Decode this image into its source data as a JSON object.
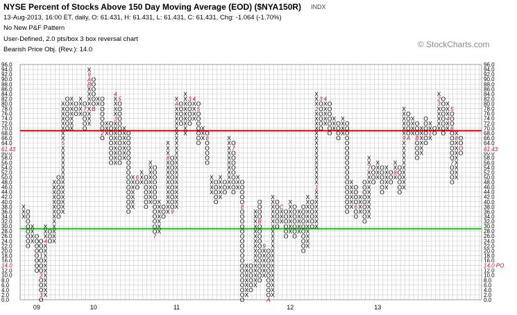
{
  "header": {
    "title": "NYSE Percent of Stocks Above 150 Day Moving Average (EOD) ($NYA150R)",
    "ticker_label": "INDX",
    "line1": "13-Aug-2013, 16:00 ET, daily, O: 61.431, H: 61.431, L: 61.431, C: 61.431, Chg: -1.064 (-1.70%)",
    "line2": "No New P&F Pattern",
    "line3": "User-Defined, 2.0 pts/box 3 box reversal chart",
    "line4": "Bearish Price Obj. (Rev.): 14.0",
    "watermark": "© StockCharts.com"
  },
  "colors": {
    "grid": "#c8c8c8",
    "x_mark": "#000000",
    "o_mark": "#000000",
    "month_mark": "#cc0033",
    "resistance_line": "#e00000",
    "support_line": "#00cc00",
    "axis_text": "#000000"
  },
  "chart_data": {
    "type": "point-and-figure",
    "box_size": 2.0,
    "reversal": 3,
    "ylim": [
      0,
      96
    ],
    "y_ticks": [
      0,
      2,
      4,
      6,
      8,
      10,
      12,
      14,
      16,
      18,
      20,
      22,
      24,
      26,
      28,
      30,
      32,
      34,
      36,
      38,
      40,
      42,
      44,
      46,
      48,
      50,
      52,
      54,
      56,
      58,
      60,
      62,
      64,
      66,
      68,
      70,
      72,
      74,
      76,
      78,
      80,
      82,
      84,
      86,
      88,
      90,
      92,
      94,
      96
    ],
    "x_year_labels": [
      {
        "label": "09",
        "col": 3
      },
      {
        "label": "10",
        "col": 16
      },
      {
        "label": "11",
        "col": 35
      },
      {
        "label": "12",
        "col": 61
      },
      {
        "label": "13",
        "col": 81
      }
    ],
    "reference_lines": [
      {
        "name": "resistance",
        "value": 69
      },
      {
        "name": "support",
        "value": 29
      }
    ],
    "price_labels": [
      {
        "text": "61.43",
        "value": 61.43
      },
      {
        "text": "14.0 PO",
        "value": 14
      }
    ],
    "columns": [
      {
        "t": "X",
        "lo": 34,
        "hi": 38
      },
      {
        "t": "O",
        "lo": 22,
        "hi": 36
      },
      {
        "t": "X",
        "lo": 24,
        "hi": 30
      },
      {
        "t": "O",
        "lo": 12,
        "hi": 26
      },
      {
        "t": "O",
        "lo": 0,
        "hi": 24,
        "marks": [
          {
            "v": 18,
            "m": "1"
          },
          {
            "v": 10,
            "m": "2"
          },
          {
            "v": 2,
            "m": "3"
          }
        ]
      },
      {
        "t": "X",
        "lo": 2,
        "hi": 30,
        "marks": [
          {
            "v": 24,
            "m": "4"
          }
        ]
      },
      {
        "t": "O",
        "lo": 24,
        "hi": 28
      },
      {
        "t": "X",
        "lo": 24,
        "hi": 48
      },
      {
        "t": "O",
        "lo": 34,
        "hi": 50
      },
      {
        "t": "X",
        "lo": 36,
        "hi": 80,
        "marks": [
          {
            "v": 64,
            "m": "5"
          }
        ]
      },
      {
        "t": "O",
        "lo": 70,
        "hi": 82
      },
      {
        "t": "X",
        "lo": 70,
        "hi": 82
      },
      {
        "t": "O",
        "lo": 76,
        "hi": 80
      },
      {
        "t": "X",
        "lo": 76,
        "hi": 82
      },
      {
        "t": "O",
        "lo": 70,
        "hi": 80,
        "marks": [
          {
            "v": 78,
            "m": "7"
          }
        ]
      },
      {
        "t": "X",
        "lo": 72,
        "hi": 94,
        "marks": [
          {
            "v": 92,
            "m": "9"
          },
          {
            "v": 90,
            "m": "A"
          },
          {
            "v": 88,
            "m": "B"
          }
        ]
      },
      {
        "t": "O",
        "lo": 78,
        "hi": 90,
        "marks": [
          {
            "v": 78,
            "m": "B"
          }
        ]
      },
      {
        "t": "X",
        "lo": 80,
        "hi": 82
      },
      {
        "t": "O",
        "lo": 66,
        "hi": 82,
        "marks": [
          {
            "v": 68,
            "m": "2"
          }
        ]
      },
      {
        "t": "X",
        "lo": 68,
        "hi": 72
      },
      {
        "t": "O",
        "lo": 56,
        "hi": 72
      },
      {
        "t": "X",
        "lo": 56,
        "hi": 84,
        "marks": [
          {
            "v": 84,
            "m": "4"
          },
          {
            "v": 74,
            "m": "3"
          }
        ]
      },
      {
        "t": "O",
        "lo": 56,
        "hi": 82,
        "marks": [
          {
            "v": 82,
            "m": "5"
          }
        ]
      },
      {
        "t": "X",
        "lo": 58,
        "hi": 70
      },
      {
        "t": "O",
        "lo": 36,
        "hi": 68
      },
      {
        "t": "X",
        "lo": 38,
        "hi": 50
      },
      {
        "t": "O",
        "lo": 46,
        "hi": 50,
        "marks": [
          {
            "v": 50,
            "m": "6"
          }
        ]
      },
      {
        "t": "X",
        "lo": 48,
        "hi": 52
      },
      {
        "t": "O",
        "lo": 38,
        "hi": 50
      },
      {
        "t": "X",
        "lo": 40,
        "hi": 56
      },
      {
        "t": "O",
        "lo": 26,
        "hi": 54,
        "marks": [
          {
            "v": 26,
            "m": "7"
          }
        ]
      },
      {
        "t": "X",
        "lo": 28,
        "hi": 40
      },
      {
        "t": "O",
        "lo": 34,
        "hi": 38
      },
      {
        "t": "X",
        "lo": 36,
        "hi": 64,
        "marks": [
          {
            "v": 58,
            "m": "8"
          }
        ]
      },
      {
        "t": "O",
        "lo": 36,
        "hi": 58,
        "marks": [
          {
            "v": 36,
            "m": "9"
          }
        ]
      },
      {
        "t": "X",
        "lo": 38,
        "hi": 82,
        "marks": [
          {
            "v": 80,
            "m": "A"
          }
        ]
      },
      {
        "t": "O",
        "lo": 72,
        "hi": 80,
        "marks": [
          {
            "v": 84,
            "m": "1"
          }
        ]
      },
      {
        "t": "X",
        "lo": 68,
        "hi": 84
      },
      {
        "t": "O",
        "lo": 72,
        "hi": 82,
        "marks": [
          {
            "v": 82,
            "m": "3"
          }
        ]
      },
      {
        "t": "X",
        "lo": 74,
        "hi": 82,
        "marks": [
          {
            "v": 82,
            "m": "4"
          }
        ]
      },
      {
        "t": "O",
        "lo": 64,
        "hi": 80,
        "marks": [
          {
            "v": 78,
            "m": "5"
          }
        ]
      },
      {
        "t": "X",
        "lo": 66,
        "hi": 70
      },
      {
        "t": "O",
        "lo": 56,
        "hi": 68,
        "marks": [
          {
            "v": 66,
            "m": "6"
          }
        ]
      },
      {
        "t": "X",
        "lo": 44,
        "hi": 50
      },
      {
        "t": "O",
        "lo": 40,
        "hi": 48
      },
      {
        "t": "X",
        "lo": 42,
        "hi": 50
      },
      {
        "t": "O",
        "lo": 44,
        "hi": 48
      },
      {
        "t": "X",
        "lo": 46,
        "hi": 66
      },
      {
        "t": "O",
        "lo": 44,
        "hi": 64,
        "marks": [
          {
            "v": 62,
            "m": "7"
          }
        ]
      },
      {
        "t": "X",
        "lo": 46,
        "hi": 50
      },
      {
        "t": "O",
        "lo": 0,
        "hi": 48,
        "marks": [
          {
            "v": 38,
            "m": "8"
          }
        ]
      },
      {
        "t": "X",
        "lo": 2,
        "hi": 14
      },
      {
        "t": "O",
        "lo": 4,
        "hi": 14
      },
      {
        "t": "X",
        "lo": 6,
        "hi": 36
      },
      {
        "t": "O",
        "lo": 8,
        "hi": 40,
        "marks": [
          {
            "v": 32,
            "m": "B"
          }
        ]
      },
      {
        "t": "X",
        "lo": 10,
        "hi": 22,
        "marks": [
          {
            "v": 22,
            "m": "9"
          }
        ]
      },
      {
        "t": "O",
        "lo": 0,
        "hi": 20,
        "marks": [
          {
            "v": 0,
            "m": "A"
          }
        ]
      },
      {
        "t": "X",
        "lo": 2,
        "hi": 42
      },
      {
        "t": "O",
        "lo": 30,
        "hi": 40
      },
      {
        "t": "X",
        "lo": 32,
        "hi": 38,
        "marks": [
          {
            "v": 38,
            "m": "C"
          }
        ]
      },
      {
        "t": "O",
        "lo": 26,
        "hi": 36
      },
      {
        "t": "X",
        "lo": 28,
        "hi": 40
      },
      {
        "t": "O",
        "lo": 26,
        "hi": 38
      },
      {
        "t": "X",
        "lo": 28,
        "hi": 36
      },
      {
        "t": "O",
        "lo": 20,
        "hi": 38
      },
      {
        "t": "X",
        "lo": 22,
        "hi": 42
      },
      {
        "t": "O",
        "lo": 30,
        "hi": 40
      },
      {
        "t": "X",
        "lo": 30,
        "hi": 84,
        "marks": [
          {
            "v": 78,
            "m": "2"
          },
          {
            "v": 46,
            "m": "1"
          }
        ]
      },
      {
        "t": "O",
        "lo": 70,
        "hi": 82,
        "marks": [
          {
            "v": 82,
            "m": "3"
          }
        ]
      },
      {
        "t": "X",
        "lo": 72,
        "hi": 82,
        "marks": [
          {
            "v": 82,
            "m": "4"
          }
        ]
      },
      {
        "t": "O",
        "lo": 68,
        "hi": 80
      },
      {
        "t": "X",
        "lo": 70,
        "hi": 74
      },
      {
        "t": "O",
        "lo": 66,
        "hi": 72
      },
      {
        "t": "X",
        "lo": 68,
        "hi": 74
      },
      {
        "t": "O",
        "lo": 36,
        "hi": 72,
        "marks": [
          {
            "v": 74,
            "m": "5"
          }
        ]
      },
      {
        "t": "X",
        "lo": 38,
        "hi": 48
      },
      {
        "t": "O",
        "lo": 34,
        "hi": 46,
        "marks": [
          {
            "v": 38,
            "m": "6"
          }
        ]
      },
      {
        "t": "X",
        "lo": 36,
        "hi": 42
      },
      {
        "t": "O",
        "lo": 32,
        "hi": 48
      },
      {
        "t": "X",
        "lo": 34,
        "hi": 58,
        "marks": [
          {
            "v": 54,
            "m": "7"
          }
        ]
      },
      {
        "t": "O",
        "lo": 48,
        "hi": 54
      },
      {
        "t": "X",
        "lo": 50,
        "hi": 56
      },
      {
        "t": "O",
        "lo": 44,
        "hi": 54
      },
      {
        "t": "X",
        "lo": 46,
        "hi": 54
      },
      {
        "t": "O",
        "lo": 48,
        "hi": 52
      },
      {
        "t": "X",
        "lo": 50,
        "hi": 56,
        "marks": [
          {
            "v": 52,
            "m": "8"
          }
        ]
      },
      {
        "t": "O",
        "lo": 44,
        "hi": 54
      },
      {
        "t": "X",
        "lo": 46,
        "hi": 78,
        "marks": [
          {
            "v": 66,
            "m": "9"
          }
        ]
      },
      {
        "t": "O",
        "lo": 66,
        "hi": 76,
        "marks": [
          {
            "v": 66,
            "m": "A"
          }
        ]
      },
      {
        "t": "X",
        "lo": 68,
        "hi": 74
      },
      {
        "t": "O",
        "lo": 58,
        "hi": 72,
        "marks": [
          {
            "v": 66,
            "m": "B"
          }
        ]
      },
      {
        "t": "X",
        "lo": 60,
        "hi": 70,
        "marks": [
          {
            "v": 72,
            "m": "C"
          }
        ]
      },
      {
        "t": "O",
        "lo": 64,
        "hi": 74
      },
      {
        "t": "X",
        "lo": 66,
        "hi": 72,
        "marks": [
          {
            "v": 68,
            "m": "1"
          }
        ]
      },
      {
        "t": "O",
        "lo": 68,
        "hi": 70
      },
      {
        "t": "X",
        "lo": 70,
        "hi": 84,
        "marks": [
          {
            "v": 82,
            "m": "2"
          },
          {
            "v": 80,
            "m": "3"
          }
        ]
      },
      {
        "t": "O",
        "lo": 68,
        "hi": 82
      },
      {
        "t": "X",
        "lo": 70,
        "hi": 80,
        "marks": [
          {
            "v": 74,
            "m": "4"
          }
        ]
      },
      {
        "t": "O",
        "lo": 48,
        "hi": 78,
        "marks": [
          {
            "v": 78,
            "m": "5"
          },
          {
            "v": 70,
            "m": "6"
          },
          {
            "v": 56,
            "m": "7"
          }
        ]
      },
      {
        "t": "X",
        "lo": 50,
        "hi": 68,
        "marks": [
          {
            "v": 66,
            "m": "8"
          }
        ]
      },
      {
        "t": "O",
        "lo": 60,
        "hi": 66,
        "marks": [
          {
            "v": 62,
            "m": "O"
          }
        ]
      }
    ]
  }
}
